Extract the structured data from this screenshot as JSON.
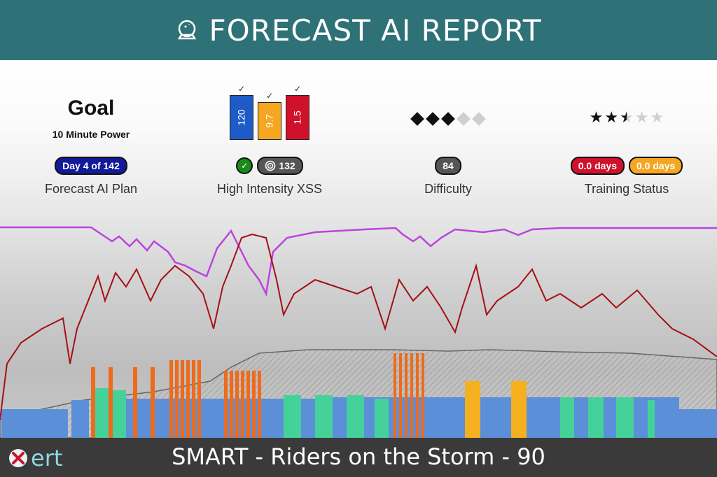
{
  "header": {
    "title": "FORECAST AI REPORT",
    "icon": "crystal-ball-icon"
  },
  "goal": {
    "title": "Goal",
    "subtitle": "10 Minute Power",
    "plan_badge": "Day 4 of 142",
    "label": "Forecast AI Plan"
  },
  "xss": {
    "bars": [
      {
        "value": "120",
        "color": "#1e5bc6",
        "check": "✓",
        "level": 0.84
      },
      {
        "value": "9.7",
        "color": "#f5a623",
        "check": "✓",
        "level": 0.7
      },
      {
        "value": "1.5",
        "color": "#d0112b",
        "check": "✓",
        "level": 0.84
      }
    ],
    "check_badge": "✓",
    "target_badge": "132",
    "label": "High Intensity XSS"
  },
  "difficulty": {
    "rating": 3,
    "max": 5,
    "score_badge": "84",
    "label": "Difficulty"
  },
  "training": {
    "stars": 2.5,
    "max": 5,
    "badge_red": "0.0 days",
    "badge_orange": "0.0 days",
    "label": "Training Status"
  },
  "footer": {
    "title": "SMART - Riders on the Storm - 90",
    "logo_text": "ert"
  },
  "colors": {
    "header": "#2e7176",
    "power_line": "#a50f15",
    "ftp_line": "#bb44dd",
    "footer": "#3a3a3a"
  }
}
